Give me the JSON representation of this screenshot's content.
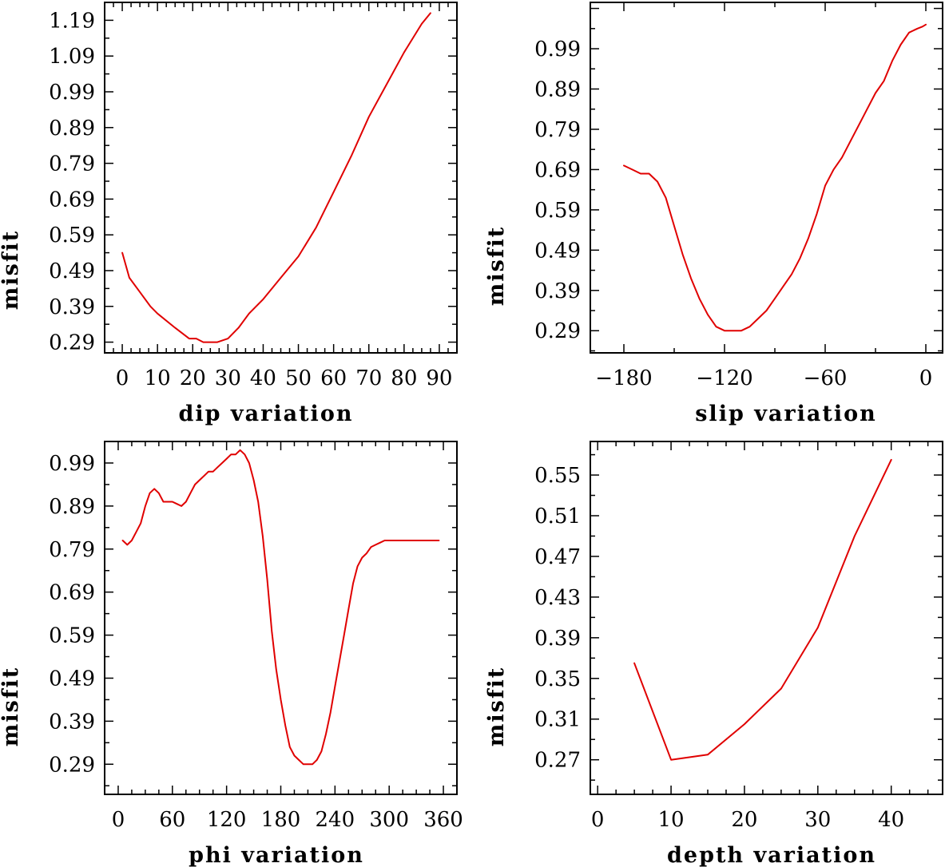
{
  "colors": {
    "line": "#e00000",
    "frame": "#000000",
    "background": "#ffffff"
  },
  "chart_data": [
    {
      "id": "dip",
      "type": "line",
      "title": "",
      "xlabel": "dip    variation",
      "ylabel": "misfit",
      "xlim": [
        -5,
        95
      ],
      "ylim": [
        0.26,
        1.24
      ],
      "xticks": [
        0,
        10,
        20,
        30,
        40,
        50,
        60,
        70,
        80,
        90
      ],
      "xtick_labels": [
        "0",
        "10",
        "20",
        "30",
        "40",
        "50",
        "60",
        "70",
        "80",
        "90"
      ],
      "yticks": [
        0.29,
        0.39,
        0.49,
        0.59,
        0.69,
        0.79,
        0.89,
        0.99,
        1.09,
        1.19
      ],
      "ytick_labels": [
        "0.29",
        "0.39",
        "0.49",
        "0.59",
        "0.69",
        "0.79",
        "0.89",
        "0.99",
        "1.09",
        "1.19"
      ],
      "x": [
        0,
        2,
        5,
        8,
        10,
        15,
        19,
        21,
        23,
        25,
        27,
        30,
        33,
        36,
        40,
        45,
        50,
        55,
        60,
        65,
        70,
        75,
        80,
        85,
        87.5
      ],
      "y": [
        0.54,
        0.47,
        0.43,
        0.39,
        0.37,
        0.33,
        0.3,
        0.3,
        0.29,
        0.29,
        0.29,
        0.3,
        0.33,
        0.37,
        0.41,
        0.47,
        0.53,
        0.61,
        0.71,
        0.81,
        0.92,
        1.01,
        1.1,
        1.18,
        1.21
      ]
    },
    {
      "id": "slip",
      "type": "line",
      "title": "",
      "xlabel": "slip    variation",
      "ylabel": "misfit",
      "xlim": [
        -200,
        10
      ],
      "ylim": [
        0.235,
        1.105
      ],
      "xticks": [
        -180,
        -120,
        -60,
        0
      ],
      "xtick_labels": [
        "−180",
        "−120",
        "−60",
        "0"
      ],
      "yticks": [
        0.29,
        0.39,
        0.49,
        0.59,
        0.69,
        0.79,
        0.89,
        0.99
      ],
      "ytick_labels": [
        "0.29",
        "0.39",
        "0.49",
        "0.59",
        "0.69",
        "0.79",
        "0.89",
        "0.99"
      ],
      "x": [
        -180,
        -175,
        -170,
        -165,
        -160,
        -155,
        -150,
        -145,
        -140,
        -135,
        -130,
        -125,
        -120,
        -115,
        -110,
        -105,
        -100,
        -95,
        -90,
        -85,
        -80,
        -75,
        -70,
        -65,
        -60,
        -55,
        -50,
        -45,
        -40,
        -35,
        -30,
        -25,
        -20,
        -15,
        -10,
        -5,
        -2,
        0
      ],
      "y": [
        0.7,
        0.69,
        0.68,
        0.68,
        0.66,
        0.62,
        0.55,
        0.48,
        0.42,
        0.37,
        0.33,
        0.3,
        0.29,
        0.29,
        0.29,
        0.3,
        0.32,
        0.34,
        0.37,
        0.4,
        0.43,
        0.47,
        0.52,
        0.58,
        0.65,
        0.69,
        0.72,
        0.76,
        0.8,
        0.84,
        0.88,
        0.91,
        0.96,
        1.0,
        1.03,
        1.04,
        1.045,
        1.05
      ]
    },
    {
      "id": "phi",
      "type": "line",
      "title": "",
      "xlabel": "phi     variation",
      "ylabel": "misfit",
      "xlim": [
        -15,
        375
      ],
      "ylim": [
        0.22,
        1.04
      ],
      "xticks": [
        0,
        60,
        120,
        180,
        240,
        300,
        360
      ],
      "xtick_labels": [
        "0",
        "60",
        "120",
        "180",
        "240",
        "300",
        "360"
      ],
      "yticks": [
        0.29,
        0.39,
        0.49,
        0.59,
        0.69,
        0.79,
        0.89,
        0.99
      ],
      "ytick_labels": [
        "0.29",
        "0.39",
        "0.49",
        "0.59",
        "0.69",
        "0.79",
        "0.89",
        "0.99"
      ],
      "x": [
        5,
        10,
        15,
        20,
        25,
        30,
        35,
        40,
        45,
        50,
        55,
        60,
        65,
        70,
        75,
        80,
        85,
        90,
        95,
        100,
        105,
        110,
        115,
        120,
        125,
        130,
        135,
        140,
        145,
        150,
        155,
        160,
        165,
        170,
        175,
        180,
        185,
        190,
        195,
        200,
        205,
        210,
        215,
        220,
        225,
        230,
        235,
        240,
        245,
        250,
        255,
        260,
        265,
        270,
        275,
        280,
        285,
        290,
        295,
        300,
        305,
        310,
        315,
        320,
        325,
        330,
        335,
        340,
        345,
        350,
        355
      ],
      "y": [
        0.81,
        0.8,
        0.81,
        0.83,
        0.85,
        0.89,
        0.92,
        0.93,
        0.92,
        0.9,
        0.9,
        0.9,
        0.895,
        0.89,
        0.9,
        0.92,
        0.94,
        0.95,
        0.96,
        0.97,
        0.97,
        0.98,
        0.99,
        1.0,
        1.01,
        1.01,
        1.02,
        1.01,
        0.99,
        0.95,
        0.9,
        0.82,
        0.72,
        0.6,
        0.51,
        0.44,
        0.38,
        0.33,
        0.31,
        0.3,
        0.29,
        0.29,
        0.29,
        0.3,
        0.32,
        0.36,
        0.41,
        0.47,
        0.53,
        0.59,
        0.65,
        0.71,
        0.75,
        0.77,
        0.78,
        0.795,
        0.8,
        0.805,
        0.81,
        0.81,
        0.81,
        0.81,
        0.81,
        0.81,
        0.81,
        0.81,
        0.81,
        0.81,
        0.81,
        0.81,
        0.81
      ]
    },
    {
      "id": "depth",
      "type": "line",
      "title": "",
      "xlabel": "depth   variation",
      "ylabel": "misfit",
      "xlim": [
        -1,
        47
      ],
      "ylim": [
        0.236,
        0.583
      ],
      "xticks": [
        0,
        10,
        20,
        30,
        40
      ],
      "xtick_labels": [
        "0",
        "10",
        "20",
        "30",
        "40"
      ],
      "yticks": [
        0.27,
        0.31,
        0.35,
        0.39,
        0.43,
        0.47,
        0.51,
        0.55
      ],
      "ytick_labels": [
        "0.27",
        "0.31",
        "0.35",
        "0.39",
        "0.43",
        "0.47",
        "0.51",
        "0.55"
      ],
      "x": [
        5,
        10,
        15,
        20,
        25,
        30,
        35,
        40
      ],
      "y": [
        0.365,
        0.27,
        0.275,
        0.305,
        0.34,
        0.4,
        0.49,
        0.565
      ]
    }
  ]
}
